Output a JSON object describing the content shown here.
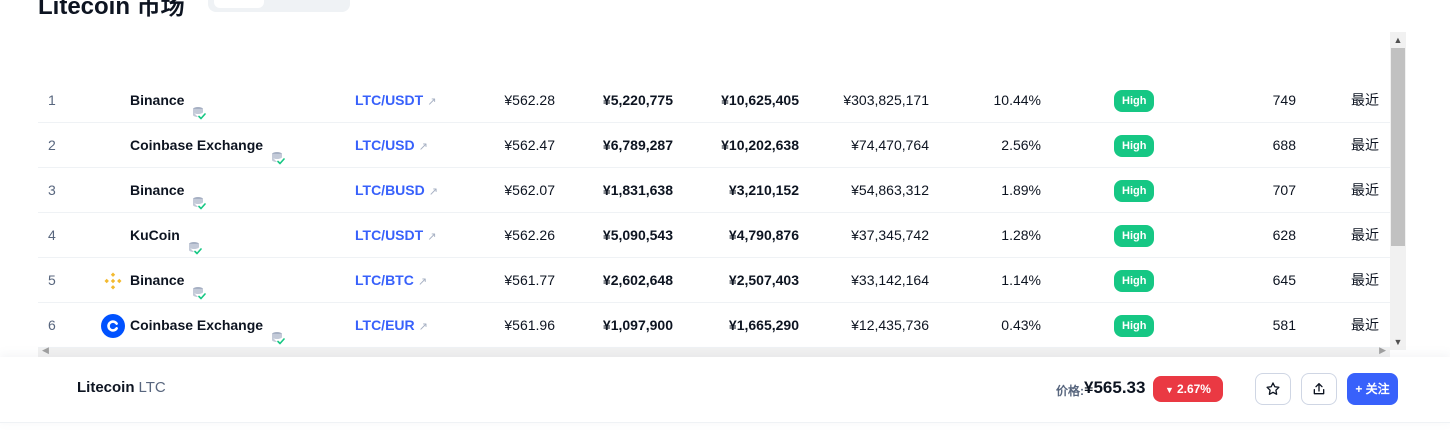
{
  "heading": "Litecoin 市场",
  "table": {
    "rows": [
      {
        "rank": "1",
        "exchange": "Binance",
        "logo": "none",
        "pair": "LTC/USDT",
        "price": "¥562.28",
        "depth_plus": "¥5,220,775",
        "depth_minus": "¥10,625,405",
        "volume": "¥303,825,171",
        "volume_share": "10.44%",
        "confidence": "High",
        "liquidity": "749",
        "updated": "最近"
      },
      {
        "rank": "2",
        "exchange": "Coinbase Exchange",
        "logo": "none",
        "pair": "LTC/USD",
        "price": "¥562.47",
        "depth_plus": "¥6,789,287",
        "depth_minus": "¥10,202,638",
        "volume": "¥74,470,764",
        "volume_share": "2.56%",
        "confidence": "High",
        "liquidity": "688",
        "updated": "最近"
      },
      {
        "rank": "3",
        "exchange": "Binance",
        "logo": "none",
        "pair": "LTC/BUSD",
        "price": "¥562.07",
        "depth_plus": "¥1,831,638",
        "depth_minus": "¥3,210,152",
        "volume": "¥54,863,312",
        "volume_share": "1.89%",
        "confidence": "High",
        "liquidity": "707",
        "updated": "最近"
      },
      {
        "rank": "4",
        "exchange": "KuCoin",
        "logo": "none",
        "pair": "LTC/USDT",
        "price": "¥562.26",
        "depth_plus": "¥5,090,543",
        "depth_minus": "¥4,790,876",
        "volume": "¥37,345,742",
        "volume_share": "1.28%",
        "confidence": "High",
        "liquidity": "628",
        "updated": "最近"
      },
      {
        "rank": "5",
        "exchange": "Binance",
        "logo": "binance-logo",
        "pair": "LTC/BTC",
        "price": "¥561.77",
        "depth_plus": "¥2,602,648",
        "depth_minus": "¥2,507,403",
        "volume": "¥33,142,164",
        "volume_share": "1.14%",
        "confidence": "High",
        "liquidity": "645",
        "updated": "最近"
      },
      {
        "rank": "6",
        "exchange": "Coinbase Exchange",
        "logo": "coinbase-logo",
        "pair": "LTC/EUR",
        "price": "¥561.96",
        "depth_plus": "¥1,097,900",
        "depth_minus": "¥1,665,290",
        "volume": "¥12,435,736",
        "volume_share": "0.43%",
        "confidence": "High",
        "liquidity": "581",
        "updated": "最近"
      }
    ]
  },
  "bottom_bar": {
    "coin_name": "Litecoin",
    "coin_symbol": "LTC",
    "price_label": "价格:",
    "price": "¥565.33",
    "change": "2.67%",
    "follow_label": "+ 关注"
  },
  "icons": {
    "verified": "database-check-icon",
    "external": "external-link-icon",
    "star": "star-icon",
    "share": "share-icon",
    "change_direction": "caret-down-icon"
  },
  "colors": {
    "link": "#3861fb",
    "high_badge": "#16c784",
    "down": "#ea3943",
    "primary_button": "#3861fb",
    "binance": "#f3ba2f",
    "coinbase": "#0052ff"
  }
}
